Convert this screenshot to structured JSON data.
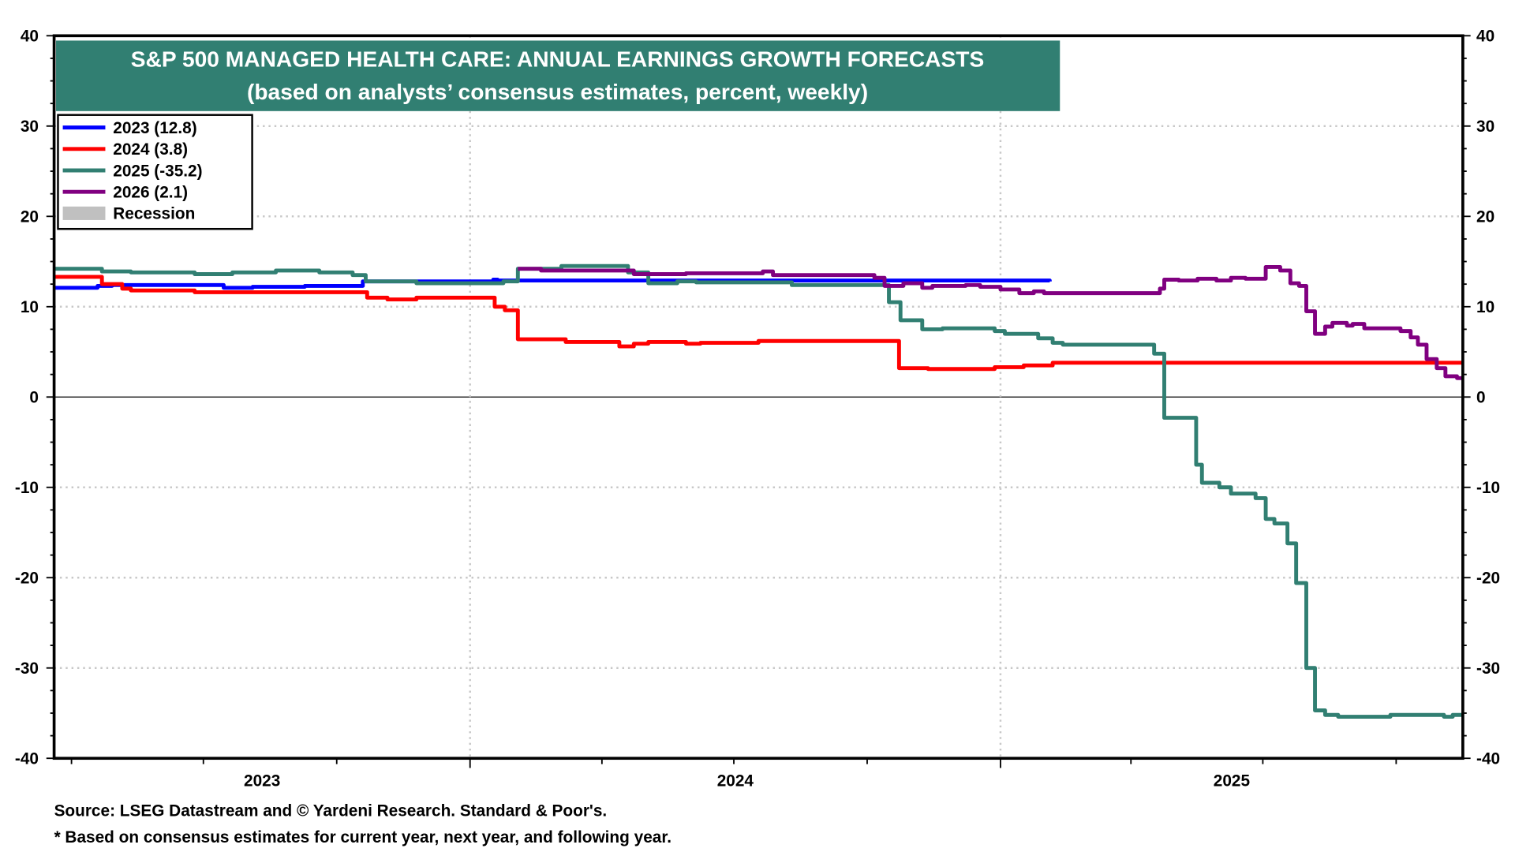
{
  "chart_data": {
    "type": "line",
    "title": "S&P 500 MANAGED HEALTH CARE: ANNUAL EARNINGS GROWTH FORECASTS",
    "subtitle": "(based on analysts’ consensus estimates, percent, weekly)",
    "xlabel": "",
    "ylabel": "",
    "ylim": [
      -40,
      40
    ],
    "yticks": [
      40,
      30,
      20,
      10,
      0,
      -10,
      -20,
      -30,
      -40
    ],
    "xlim": [
      "2023-03-20",
      "2025-11-16"
    ],
    "xticks": [
      {
        "label": "2023",
        "date": "2023-03-20"
      },
      {
        "label": "2024",
        "date": "2024-01-01"
      },
      {
        "label": "2025",
        "date": "2025-01-01"
      }
    ],
    "grid": true,
    "right_axis": true,
    "legend_position": "top-left",
    "step": true,
    "series": [
      {
        "name": "2023 (12.8)",
        "color": "#0000ff",
        "points": [
          [
            "2023-03-20",
            12.1
          ],
          [
            "2023-04-19",
            12.3
          ],
          [
            "2023-04-29",
            12.4
          ],
          [
            "2023-07-15",
            12.1
          ],
          [
            "2023-08-04",
            12.2
          ],
          [
            "2023-09-09",
            12.3
          ],
          [
            "2023-10-19",
            12.8
          ],
          [
            "2024-01-17",
            13.0
          ],
          [
            "2024-01-20",
            12.9
          ],
          [
            "2025-02-04",
            12.8
          ]
        ]
      },
      {
        "name": "2024 (3.8)",
        "color": "#ff0000",
        "points": [
          [
            "2023-03-20",
            13.3
          ],
          [
            "2023-04-22",
            12.5
          ],
          [
            "2023-05-06",
            12.0
          ],
          [
            "2023-05-12",
            11.8
          ],
          [
            "2023-06-25",
            11.6
          ],
          [
            "2023-10-22",
            11.0
          ],
          [
            "2023-11-05",
            10.8
          ],
          [
            "2023-11-25",
            11.0
          ],
          [
            "2024-01-18",
            10.0
          ],
          [
            "2024-01-25",
            9.6
          ],
          [
            "2024-02-03",
            6.4
          ],
          [
            "2024-03-07",
            6.1
          ],
          [
            "2024-04-13",
            5.6
          ],
          [
            "2024-04-23",
            5.9
          ],
          [
            "2024-05-03",
            6.1
          ],
          [
            "2024-05-29",
            5.9
          ],
          [
            "2024-06-08",
            6.0
          ],
          [
            "2024-07-18",
            6.2
          ],
          [
            "2024-10-23",
            3.2
          ],
          [
            "2024-11-12",
            3.1
          ],
          [
            "2024-12-28",
            3.3
          ],
          [
            "2025-01-17",
            3.5
          ],
          [
            "2025-02-06",
            3.8
          ],
          [
            "2025-11-16",
            3.8
          ]
        ]
      },
      {
        "name": "2025 (-35.2)",
        "color": "#317f72",
        "points": [
          [
            "2023-03-20",
            14.2
          ],
          [
            "2023-04-22",
            13.9
          ],
          [
            "2023-05-12",
            13.8
          ],
          [
            "2023-06-25",
            13.6
          ],
          [
            "2023-07-21",
            13.8
          ],
          [
            "2023-08-20",
            14.0
          ],
          [
            "2023-09-19",
            13.8
          ],
          [
            "2023-10-12",
            13.5
          ],
          [
            "2023-10-21",
            12.8
          ],
          [
            "2023-11-25",
            12.6
          ],
          [
            "2024-01-24",
            12.8
          ],
          [
            "2024-02-03",
            14.2
          ],
          [
            "2024-03-04",
            14.5
          ],
          [
            "2024-04-19",
            13.8
          ],
          [
            "2024-05-03",
            12.6
          ],
          [
            "2024-05-23",
            12.8
          ],
          [
            "2024-06-05",
            12.7
          ],
          [
            "2024-08-10",
            12.4
          ],
          [
            "2024-10-16",
            10.5
          ],
          [
            "2024-10-24",
            8.5
          ],
          [
            "2024-11-08",
            7.5
          ],
          [
            "2024-11-22",
            7.6
          ],
          [
            "2024-12-28",
            7.3
          ],
          [
            "2025-01-04",
            7.0
          ],
          [
            "2025-01-27",
            6.5
          ],
          [
            "2025-02-06",
            6.0
          ],
          [
            "2025-02-13",
            5.8
          ],
          [
            "2025-04-17",
            4.8
          ],
          [
            "2025-04-24",
            -2.3
          ],
          [
            "2025-05-16",
            -7.5
          ],
          [
            "2025-05-20",
            -9.5
          ],
          [
            "2025-06-01",
            -10.0
          ],
          [
            "2025-06-09",
            -10.7
          ],
          [
            "2025-06-26",
            -11.2
          ],
          [
            "2025-07-03",
            -13.5
          ],
          [
            "2025-07-09",
            -14.0
          ],
          [
            "2025-07-18",
            -16.2
          ],
          [
            "2025-07-24",
            -20.6
          ],
          [
            "2025-07-31",
            -30.0
          ],
          [
            "2025-08-06",
            -34.7
          ],
          [
            "2025-08-13",
            -35.2
          ],
          [
            "2025-08-22",
            -35.4
          ],
          [
            "2025-09-27",
            -35.2
          ],
          [
            "2025-11-03",
            -35.4
          ],
          [
            "2025-11-09",
            -35.2
          ],
          [
            "2025-11-16",
            -35.2
          ]
        ]
      },
      {
        "name": "2026 (2.1)",
        "color": "#800080",
        "points": [
          [
            "2024-02-03",
            14.2
          ],
          [
            "2024-02-19",
            14.0
          ],
          [
            "2024-04-23",
            13.6
          ],
          [
            "2024-05-29",
            13.7
          ],
          [
            "2024-07-21",
            13.9
          ],
          [
            "2024-07-28",
            13.5
          ],
          [
            "2024-10-06",
            13.2
          ],
          [
            "2024-10-13",
            12.3
          ],
          [
            "2024-10-26",
            12.6
          ],
          [
            "2024-11-08",
            12.1
          ],
          [
            "2024-11-15",
            12.3
          ],
          [
            "2024-12-08",
            12.4
          ],
          [
            "2024-12-18",
            12.2
          ],
          [
            "2025-01-01",
            11.9
          ],
          [
            "2025-01-14",
            11.5
          ],
          [
            "2025-01-24",
            11.7
          ],
          [
            "2025-01-31",
            11.5
          ],
          [
            "2025-04-21",
            12.0
          ],
          [
            "2025-04-24",
            13.0
          ],
          [
            "2025-05-04",
            12.9
          ],
          [
            "2025-05-17",
            13.1
          ],
          [
            "2025-05-30",
            12.9
          ],
          [
            "2025-06-09",
            13.2
          ],
          [
            "2025-06-19",
            13.1
          ],
          [
            "2025-07-03",
            14.4
          ],
          [
            "2025-07-13",
            14.0
          ],
          [
            "2025-07-20",
            12.6
          ],
          [
            "2025-07-26",
            12.3
          ],
          [
            "2025-07-31",
            9.5
          ],
          [
            "2025-08-06",
            7.0
          ],
          [
            "2025-08-13",
            7.8
          ],
          [
            "2025-08-18",
            8.2
          ],
          [
            "2025-08-28",
            7.9
          ],
          [
            "2025-09-01",
            8.1
          ],
          [
            "2025-09-09",
            7.6
          ],
          [
            "2025-10-04",
            7.3
          ],
          [
            "2025-10-11",
            6.6
          ],
          [
            "2025-10-16",
            5.8
          ],
          [
            "2025-10-22",
            4.2
          ],
          [
            "2025-10-29",
            3.2
          ],
          [
            "2025-11-04",
            2.3
          ],
          [
            "2025-11-12",
            2.1
          ],
          [
            "2025-11-16",
            2.1
          ]
        ]
      }
    ],
    "legend": [
      {
        "label": "2023 (12.8)",
        "color": "#0000ff"
      },
      {
        "label": "2024 (3.8)",
        "color": "#ff0000"
      },
      {
        "label": "2025 (-35.2)",
        "color": "#317f72"
      },
      {
        "label": "2026 (2.1)",
        "color": "#800080"
      },
      {
        "label": "Recession",
        "color": "#c0c0c0"
      }
    ],
    "title_bg": "#317f72"
  },
  "footer": {
    "source": "Source: LSEG Datastream and © Yardeni Research. Standard & Poor's.",
    "note": "* Based on consensus estimates for current year, next year, and following year."
  }
}
